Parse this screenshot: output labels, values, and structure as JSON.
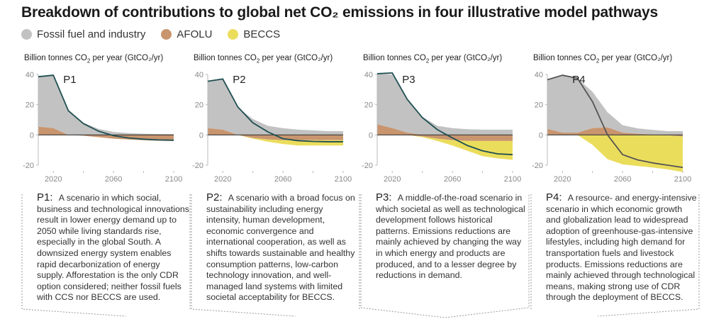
{
  "title": "Breakdown of contributions to global net CO₂ emissions in four illustrative model pathways",
  "legend": [
    {
      "label": "Fossil fuel and industry",
      "color": "#c2c2c2"
    },
    {
      "label": "AFOLU",
      "color": "#c9956e"
    },
    {
      "label": "BECCS",
      "color": "#ebdd5c"
    }
  ],
  "colors": {
    "fossil": "#c2c2c2",
    "afolu": "#c9956e",
    "beccs": "#ebdd5c",
    "net_line_teal": "#1e4f52",
    "net_line_gray": "#555555",
    "zero_line": "#3a3a3a",
    "axis": "#bbbbbb"
  },
  "ylabel_prefix": "Billion tonnes CO",
  "ylabel_sub": "2",
  "ylabel_suffix": " per year (GtCO₂/yr)",
  "chart_data": [
    {
      "type": "area",
      "id": "P1",
      "title": "P1",
      "ylabel": "Billion tonnes CO2 per year (GtCO2/yr)",
      "ylim": [
        -20,
        40
      ],
      "yticks": [
        40,
        20,
        0,
        -20
      ],
      "xlim": [
        2010,
        2100
      ],
      "xticks": [
        2020,
        2060,
        2100
      ],
      "xminor": [
        2040,
        2080
      ],
      "x": [
        2010,
        2020,
        2030,
        2040,
        2050,
        2060,
        2070,
        2080,
        2090,
        2100
      ],
      "series": [
        {
          "name": "Fossil fuel and industry",
          "values": [
            33,
            35,
            16,
            8,
            4,
            2,
            1.2,
            0.8,
            0.6,
            0.5
          ]
        },
        {
          "name": "AFOLU",
          "values": [
            5.5,
            4.5,
            0,
            -0.5,
            -1.5,
            -2.5,
            -3,
            -3.5,
            -3.8,
            -4
          ]
        },
        {
          "name": "BECCS",
          "values": [
            0,
            0,
            0,
            0,
            0,
            0,
            0,
            0,
            0,
            0
          ]
        },
        {
          "name": "Net emissions",
          "values": [
            38.5,
            39.5,
            16,
            7.5,
            2.5,
            -0.5,
            -2,
            -2.8,
            -3.3,
            -3.5
          ]
        }
      ],
      "net_color": "teal",
      "description": "A scenario in which social, business and technological innovations result in lower energy demand up to 2050 while living standards rise, especially in the global South. A downsized energy system enables rapid decarbonization of energy supply. Afforestation is the only CDR option considered; neither fossil fuels with CCS nor BECCS are used."
    },
    {
      "type": "area",
      "id": "P2",
      "title": "P2",
      "ylabel": "Billion tonnes CO2 per year (GtCO2/yr)",
      "ylim": [
        -20,
        40
      ],
      "yticks": [
        40,
        20,
        0,
        -20
      ],
      "xlim": [
        2010,
        2100
      ],
      "xticks": [
        2020,
        2060,
        2100
      ],
      "xminor": [
        2040,
        2080
      ],
      "x": [
        2010,
        2020,
        2030,
        2040,
        2050,
        2060,
        2070,
        2080,
        2090,
        2100
      ],
      "series": [
        {
          "name": "Fossil fuel and industry",
          "values": [
            31,
            33.5,
            18,
            10.5,
            6,
            4.5,
            3.5,
            3,
            2.5,
            2.5
          ]
        },
        {
          "name": "AFOLU",
          "values": [
            4.5,
            3.5,
            0,
            -2,
            -3,
            -3.5,
            -3.5,
            -3.5,
            -3.5,
            -3.5
          ]
        },
        {
          "name": "BECCS",
          "values": [
            0,
            0,
            0,
            -0.5,
            -1.5,
            -2.5,
            -3.5,
            -3.5,
            -3.5,
            -3.5
          ]
        },
        {
          "name": "Net emissions",
          "values": [
            35.5,
            37,
            18.5,
            8,
            2,
            -2.5,
            -3.8,
            -4.3,
            -4.5,
            -4.5
          ]
        }
      ],
      "net_color": "teal",
      "description": "A scenario with a broad focus on sustainability including energy intensity, human development, economic convergence and international cooperation, as well as shifts towards sustainable and healthy consumption patterns, low-carbon technology innovation, and well-managed land systems with limited societal acceptability for BECCS."
    },
    {
      "type": "area",
      "id": "P3",
      "title": "P3",
      "ylabel": "Billion tonnes CO2 per year (GtCO2/yr)",
      "ylim": [
        -20,
        40
      ],
      "yticks": [
        40,
        20,
        0,
        -20
      ],
      "xlim": [
        2010,
        2100
      ],
      "xticks": [
        2020,
        2060,
        2100
      ],
      "xminor": [
        2040,
        2080
      ],
      "x": [
        2010,
        2020,
        2030,
        2040,
        2050,
        2060,
        2070,
        2080,
        2090,
        2100
      ],
      "series": [
        {
          "name": "Fossil fuel and industry",
          "values": [
            33.5,
            35.5,
            22,
            12,
            6,
            4.5,
            3.8,
            3.5,
            3.5,
            3.5
          ]
        },
        {
          "name": "AFOLU",
          "values": [
            7,
            4.5,
            1.5,
            -1,
            -2.5,
            -3.5,
            -4,
            -4,
            -4,
            -4
          ]
        },
        {
          "name": "BECCS",
          "values": [
            0,
            0,
            0,
            -0.5,
            -1.5,
            -3.5,
            -6.5,
            -10,
            -11.5,
            -12.5
          ]
        },
        {
          "name": "Net emissions",
          "values": [
            40.5,
            41,
            23.5,
            11.5,
            3.5,
            -2,
            -7,
            -10.5,
            -12.5,
            -13
          ]
        }
      ],
      "net_color": "teal",
      "description": "A middle-of-the-road scenario in which societal as well as technological development follows historical patterns. Emissions reductions are mainly achieved by changing the way in which energy and products are produced, and to a lesser degree by reductions in demand."
    },
    {
      "type": "area",
      "id": "P4",
      "title": "P4",
      "ylabel": "Billion tonnes CO2 per year (GtCO2/yr)",
      "ylim": [
        -20,
        40
      ],
      "yticks": [
        40,
        20,
        0,
        -20
      ],
      "xlim": [
        2010,
        2100
      ],
      "xticks": [
        2020,
        2060,
        2100
      ],
      "xminor": [
        2040,
        2080
      ],
      "x": [
        2010,
        2020,
        2030,
        2040,
        2050,
        2060,
        2070,
        2080,
        2090,
        2100
      ],
      "series": [
        {
          "name": "Fossil fuel and industry",
          "values": [
            32,
            38,
            36,
            24,
            10,
            5,
            3.5,
            3,
            2.5,
            2.5
          ]
        },
        {
          "name": "AFOLU",
          "values": [
            4,
            1.5,
            1.5,
            4.5,
            5,
            1.5,
            0.8,
            0.3,
            -0.3,
            -1
          ]
        },
        {
          "name": "BECCS",
          "values": [
            0,
            0,
            0,
            -6.5,
            -16,
            -19.5,
            -20.5,
            -21.5,
            -22.5,
            -23.5
          ]
        },
        {
          "name": "Net emissions",
          "values": [
            36.5,
            39.5,
            37.5,
            22,
            0,
            -13,
            -16.5,
            -18.5,
            -20,
            -21.5
          ]
        }
      ],
      "net_color": "gray",
      "description": "A resource- and energy-intensive scenario in which economic growth and globalization lead to widespread adoption of greenhouse-gas-intensive lifestyles, including high demand for transportation fuels and livestock products. Emissions reductions are mainly achieved through technological means, making strong use of CDR through the deployment of BECCS."
    }
  ]
}
